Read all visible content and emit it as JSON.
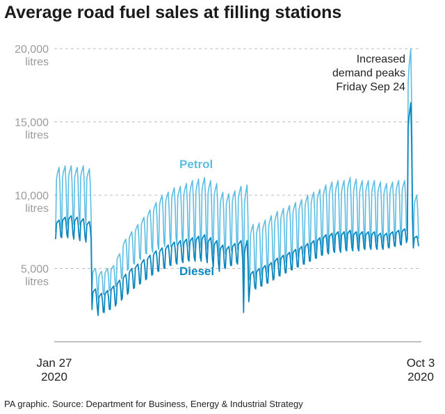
{
  "chart_data": {
    "type": "line",
    "title": "Average road fuel sales at filling stations",
    "ylim": [
      0,
      20000
    ],
    "yticks": [
      {
        "value": 20000,
        "label": "20,000",
        "unit": "litres"
      },
      {
        "value": 15000,
        "label": "15,000",
        "unit": "litres"
      },
      {
        "value": 10000,
        "label": "10,000",
        "unit": "litres"
      },
      {
        "value": 5000,
        "label": "5,000",
        "unit": "litres"
      }
    ],
    "x_start": {
      "line1": "Jan 27",
      "line2": "2020"
    },
    "x_end": {
      "line1": "Oct 3",
      "line2": "2020"
    },
    "grid": "horizontal-dashed",
    "annotation": {
      "lines": [
        "Increased",
        "demand peaks",
        "Friday Sep 24"
      ]
    },
    "series": [
      {
        "name": "Petrol",
        "color": "#5bbde3",
        "weekly_peaks": [
          11900,
          12000,
          12000,
          11900,
          12000,
          11800,
          5000,
          4800,
          5000,
          5200,
          6000,
          7000,
          7500,
          8000,
          8500,
          9000,
          9500,
          10000,
          10200,
          10500,
          10600,
          10800,
          11000,
          11100,
          11200,
          11000,
          10800,
          10200,
          10100,
          10300,
          10600,
          10700,
          8000,
          8100,
          8300,
          8600,
          8900,
          9100,
          9300,
          9500,
          9700,
          10000,
          10200,
          10400,
          10700,
          10900,
          11000,
          11000,
          11200,
          11100,
          11000,
          11000,
          11000,
          10900,
          10800,
          10900,
          11000,
          11000,
          20000,
          10000
        ],
        "weekly_troughs": [
          7500,
          7700,
          7900,
          8000,
          8000,
          8000,
          3500,
          3000,
          3200,
          3500,
          4000,
          4500,
          5000,
          5300,
          5600,
          6000,
          6100,
          6300,
          6500,
          6500,
          6600,
          6500,
          6500,
          6400,
          6400,
          6300,
          6000,
          5800,
          6000,
          6200,
          6300,
          3500,
          4200,
          4300,
          4500,
          4700,
          5000,
          5200,
          5400,
          5600,
          5800,
          6000,
          6100,
          6300,
          6400,
          6500,
          6600,
          6600,
          6700,
          6600,
          6700,
          6700,
          6800,
          6800,
          6800,
          6900,
          7000,
          7000,
          7500,
          6500
        ],
        "notes": "Daily values oscillate weekly between trough and peak"
      },
      {
        "name": "Diesel",
        "color": "#0a86bf",
        "weekly_peaks": [
          8300,
          8500,
          8600,
          8500,
          8400,
          8200,
          3600,
          3300,
          3500,
          3800,
          4200,
          4600,
          5000,
          5300,
          5600,
          5900,
          6200,
          6400,
          6600,
          6800,
          6900,
          7000,
          7100,
          7200,
          7300,
          7100,
          6900,
          6600,
          6500,
          6700,
          6900,
          6900,
          4800,
          5000,
          5200,
          5400,
          5700,
          5900,
          6100,
          6300,
          6500,
          6700,
          6900,
          7100,
          7300,
          7400,
          7500,
          7500,
          7600,
          7500,
          7500,
          7500,
          7500,
          7400,
          7400,
          7500,
          7600,
          7700,
          16300,
          7200
        ],
        "weekly_troughs": [
          7000,
          7100,
          7100,
          7000,
          6900,
          6800,
          2200,
          1800,
          2000,
          2200,
          2600,
          3000,
          3400,
          3700,
          4000,
          4300,
          4600,
          4800,
          5000,
          5200,
          5300,
          5400,
          5500,
          5500,
          5500,
          5400,
          5100,
          4800,
          5000,
          5200,
          5300,
          2000,
          3500,
          3600,
          3800,
          4000,
          4300,
          4500,
          4700,
          4900,
          5100,
          5300,
          5500,
          5700,
          5900,
          6000,
          6100,
          6100,
          6200,
          6200,
          6200,
          6300,
          6300,
          6300,
          6300,
          6400,
          6500,
          6600,
          7000,
          6400
        ],
        "notes": "Daily values oscillate weekly between trough and peak"
      }
    ]
  },
  "footer": {
    "source": "PA graphic. Source: Department for Business, Energy & Industrial Strategy"
  }
}
